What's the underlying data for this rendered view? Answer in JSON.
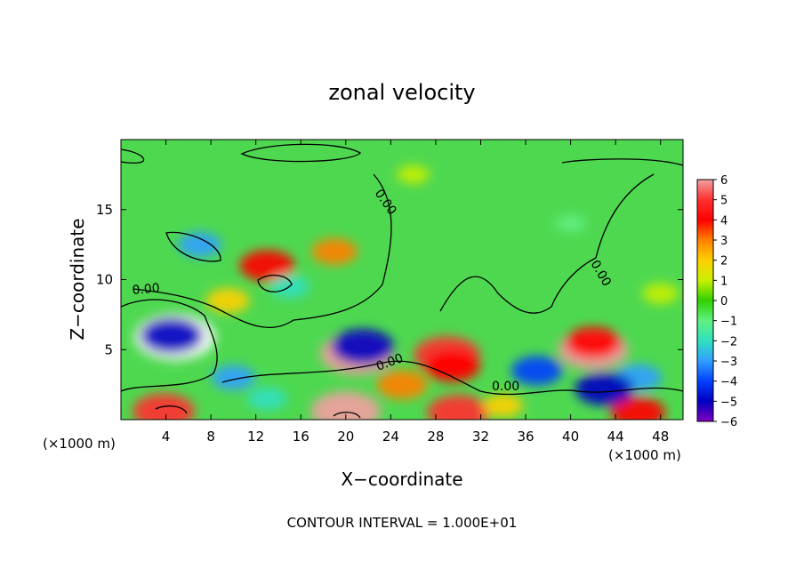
{
  "chart_data": {
    "type": "heatmap",
    "title": "zonal velocity",
    "xlabel": "X−coordinate",
    "ylabel": "Z−coordinate",
    "x_unit_left": "(×1000 m)",
    "x_unit_right": "(×1000 m)",
    "footer": "CONTOUR INTERVAL = 1.000E+01",
    "xlim": [
      0,
      50
    ],
    "ylim": [
      0,
      20
    ],
    "x_ticks": [
      "4",
      "8",
      "12",
      "16",
      "20",
      "24",
      "28",
      "32",
      "36",
      "40",
      "44",
      "48"
    ],
    "y_ticks": [
      "5",
      "10",
      "15"
    ],
    "contour_labels": [
      "0.00",
      "0.00",
      "0.00",
      "0.00",
      "0.00"
    ],
    "colorbar": {
      "range": [
        -6,
        6
      ],
      "labels": [
        "6",
        "5",
        "4",
        "3",
        "2",
        "1",
        "0",
        "−1",
        "−2",
        "−3",
        "−4",
        "−5",
        "−6"
      ],
      "colors": [
        "#f0a0a0",
        "#ff3030",
        "#ff0000",
        "#ff8000",
        "#ffd000",
        "#c8f000",
        "#30d000",
        "#60f080",
        "#30e0c0",
        "#30a0ff",
        "#0040ff",
        "#0000c0",
        "#8000c0"
      ]
    },
    "features": [
      {
        "x": 4.8,
        "z": 5.9,
        "v": 7.5
      },
      {
        "x": 4.5,
        "z": 6.0,
        "v": -5.0
      },
      {
        "x": 21.0,
        "z": 4.7,
        "v": 6.5
      },
      {
        "x": 21.5,
        "z": 5.2,
        "v": -5.0
      },
      {
        "x": 29.0,
        "z": 4.6,
        "v": 5.5
      },
      {
        "x": 29.5,
        "z": 3.8,
        "v": 4.0
      },
      {
        "x": 42.0,
        "z": 5.0,
        "v": 6.0
      },
      {
        "x": 42.0,
        "z": 5.5,
        "v": 4.0
      },
      {
        "x": 3.8,
        "z": 0.6,
        "v": 5.0
      },
      {
        "x": 20.0,
        "z": 0.6,
        "v": 6.0
      },
      {
        "x": 30.0,
        "z": 0.5,
        "v": 5.0
      },
      {
        "x": 46.0,
        "z": 0.5,
        "v": 4.0
      },
      {
        "x": 13.0,
        "z": 11.0,
        "v": 4.0
      },
      {
        "x": 19.0,
        "z": 12.0,
        "v": 2.8
      },
      {
        "x": 9.5,
        "z": 8.5,
        "v": 2.5
      },
      {
        "x": 48.0,
        "z": 9.0,
        "v": 1.5
      },
      {
        "x": 7.0,
        "z": 12.5,
        "v": -2.5
      },
      {
        "x": 15.0,
        "z": 9.5,
        "v": -2.0
      },
      {
        "x": 37.0,
        "z": 3.5,
        "v": -3.5
      },
      {
        "x": 46.0,
        "z": 3.0,
        "v": -3.0
      },
      {
        "x": 43.0,
        "z": 2.2,
        "v": -4.5
      },
      {
        "x": 25.0,
        "z": 2.5,
        "v": 3.5
      },
      {
        "x": 34.0,
        "z": 1.0,
        "v": 2.0
      },
      {
        "x": 26.0,
        "z": 17.5,
        "v": 1.0
      },
      {
        "x": 40.0,
        "z": 14.0,
        "v": -0.8
      },
      {
        "x": 10.0,
        "z": 3.0,
        "v": -2.5
      },
      {
        "x": 13.0,
        "z": 1.5,
        "v": -2.0
      }
    ]
  }
}
